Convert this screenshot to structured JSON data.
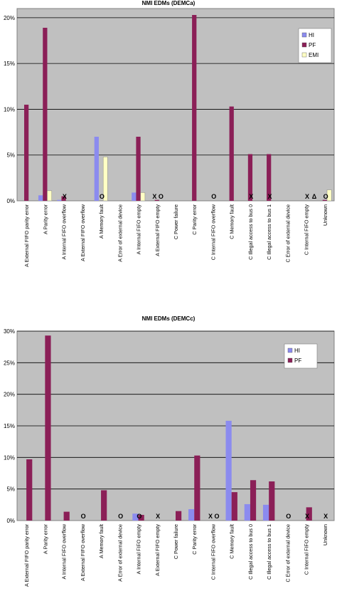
{
  "chart_data": [
    {
      "type": "bar",
      "title": "NMI EDMs (DEMCa)",
      "xlabel": "",
      "ylabel": "",
      "ylim": [
        0,
        21
      ],
      "yticks": [
        "0%",
        "5%",
        "10%",
        "15%",
        "20%"
      ],
      "grid": true,
      "legend_position": "top-right",
      "categories": [
        "A External FIFO parity error",
        "A Parity error",
        "A Internal FIFO overflow",
        "A External FIFO overflow",
        "A Memory fault",
        "A Error of external device",
        "A Internal FIFO empty",
        "A External FIFO empty",
        "C Power failure",
        "C Parity error",
        "C Internal FIFO overflow",
        "C Memory fault",
        "C Illegal access to bus 0",
        "C Illegal access to bus 1",
        "C Error of external device",
        "C Internal FIFO empty",
        "Unknown"
      ],
      "series": [
        {
          "name": "HI",
          "color": "#8b8bef",
          "values": [
            0,
            0.6,
            0.1,
            0,
            7.0,
            0,
            0.9,
            0,
            0,
            0,
            0,
            0,
            0,
            0,
            0,
            0,
            0
          ]
        },
        {
          "name": "PF",
          "color": "#8b1f57",
          "values": [
            10.5,
            18.9,
            0.5,
            0,
            0,
            0,
            7.0,
            0.1,
            0,
            20.3,
            0,
            10.3,
            5.1,
            5.1,
            0,
            0,
            0.1
          ]
        },
        {
          "name": "EMI",
          "color": "#ffffc4",
          "values": [
            0,
            1.1,
            0,
            0,
            4.8,
            0,
            0.9,
            0,
            0,
            0,
            0,
            0,
            0,
            0,
            0,
            0,
            1.2
          ]
        }
      ],
      "annotations": [
        {
          "category": 2,
          "text": "X"
        },
        {
          "category": 4,
          "text": "O"
        },
        {
          "category": 7,
          "text": "X O"
        },
        {
          "category": 10,
          "text": "O"
        },
        {
          "category": 12,
          "text": "X"
        },
        {
          "category": 13,
          "text": "X"
        },
        {
          "category": 15,
          "text": "X"
        },
        {
          "category": 15,
          "text": "Δ"
        },
        {
          "category": 16,
          "text": "O"
        }
      ]
    },
    {
      "type": "bar",
      "title": "NMI EDMs (DEMCc)",
      "xlabel": "",
      "ylabel": "",
      "ylim": [
        0,
        30
      ],
      "yticks": [
        "0%",
        "5%",
        "10%",
        "15%",
        "20%",
        "25%",
        "30%"
      ],
      "grid": true,
      "legend_position": "top-right",
      "categories": [
        "A External FIFO parity error",
        "A Parity error",
        "A Internal FIFO overflow",
        "A External FIFO overflow",
        "A Memory fault",
        "A Error of external device",
        "A Internal FIFO empty",
        "A External FIFO empty",
        "C Power failure",
        "C Parity error",
        "C Internal FIFO overflow",
        "C Memory fault",
        "C Illegal access to bus 0",
        "C Illegal access to bus 1",
        "C Error of external device",
        "C Internal FIFO empty",
        "Unknown"
      ],
      "series": [
        {
          "name": "HI",
          "color": "#8b8bef",
          "values": [
            0,
            0,
            0,
            0,
            0,
            0,
            1.1,
            0,
            0,
            1.8,
            0,
            15.8,
            2.6,
            2.5,
            0,
            0,
            0
          ]
        },
        {
          "name": "PF",
          "color": "#8b1f57",
          "values": [
            9.7,
            29.3,
            1.4,
            0,
            4.8,
            0,
            0.9,
            0,
            1.5,
            10.3,
            0,
            4.5,
            6.4,
            6.2,
            0,
            2.1,
            0
          ]
        }
      ],
      "annotations": [
        {
          "category": 3,
          "text": "O"
        },
        {
          "category": 5,
          "text": "O"
        },
        {
          "category": 6,
          "text": "O"
        },
        {
          "category": 7,
          "text": "X"
        },
        {
          "category": 10,
          "text": "X O"
        },
        {
          "category": 14,
          "text": "O"
        },
        {
          "category": 15,
          "text": "X"
        },
        {
          "category": 16,
          "text": "X"
        }
      ]
    }
  ]
}
